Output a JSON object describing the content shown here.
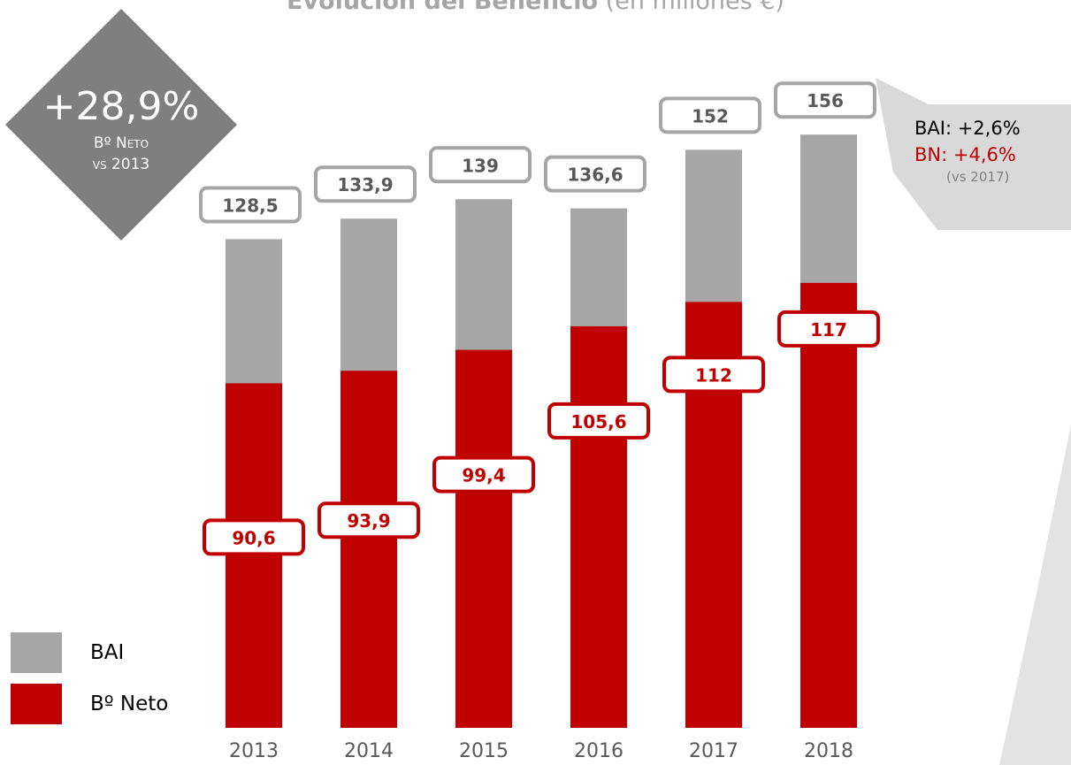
{
  "title": {
    "bold": "Evolución del Beneficio",
    "rest": " (en millones €)"
  },
  "badge": {
    "big": "+28,9%",
    "line1": "Bº Neto",
    "line2": "vs 2013"
  },
  "callout": {
    "bai": "BAI: +2,6%",
    "bn": "BN: +4,6%",
    "vs": "(vs 2017)"
  },
  "legend": {
    "bai": "BAI",
    "neto": "Bº Neto"
  },
  "colors": {
    "bai": "#a6a6a6",
    "neto": "#c00000",
    "badge": "#7f7f7f",
    "callout": "#d9d9d9",
    "label_border_bai": "#a6a6a6",
    "label_border_neto": "#c00000"
  },
  "chart_data": {
    "type": "bar",
    "stacked": false,
    "categories": [
      "2013",
      "2014",
      "2015",
      "2016",
      "2017",
      "2018"
    ],
    "series": [
      {
        "name": "BAI",
        "values": [
          128.5,
          133.9,
          139,
          136.6,
          152,
          156
        ],
        "labels": [
          "128,5",
          "133,9",
          "139",
          "136,6",
          "152",
          "156"
        ]
      },
      {
        "name": "Bº Neto",
        "values": [
          90.6,
          93.9,
          99.4,
          105.6,
          112,
          117
        ],
        "labels": [
          "90,6",
          "93,9",
          "99,4",
          "105,6",
          "112",
          "117"
        ]
      }
    ],
    "legend_position": "bottom-left",
    "grid": false
  }
}
